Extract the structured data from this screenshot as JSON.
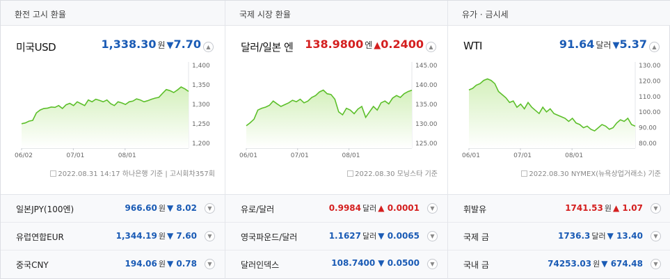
{
  "colors": {
    "up": "#d41f1f",
    "down": "#1a5bb5",
    "line": "#5cbf2a",
    "fill": "#d4f0bc"
  },
  "panels": [
    {
      "header": "환전 고시 환율",
      "name": "미국USD",
      "value": "1,338.30",
      "unit": "원",
      "dir": "down",
      "arrow": "▼",
      "change": "7.70",
      "toggle_icon": "chevron-up-icon",
      "source": "2022.08.31 14:17 하나은행 기준 | 고시회차357회",
      "chart_data": {
        "type": "area",
        "x_ticks": [
          "06/02",
          "07/01",
          "08/01"
        ],
        "y_ticks": [
          "1,400",
          "1,350",
          "1,300",
          "1,250",
          "1,200"
        ],
        "ylim": [
          1185,
          1410
        ],
        "values": [
          1251,
          1253,
          1258,
          1260,
          1280,
          1288,
          1292,
          1293,
          1296,
          1295,
          1300,
          1292,
          1302,
          1306,
          1300,
          1310,
          1305,
          1300,
          1315,
          1310,
          1317,
          1314,
          1310,
          1315,
          1305,
          1300,
          1310,
          1307,
          1303,
          1310,
          1312,
          1318,
          1315,
          1310,
          1313,
          1317,
          1320,
          1322,
          1333,
          1343,
          1340,
          1335,
          1342,
          1350,
          1345,
          1338
        ]
      }
    },
    {
      "header": "국제 시장 환율",
      "name": "달러/일본 엔",
      "value": "138.9800",
      "unit": "엔",
      "dir": "up",
      "arrow": "▲",
      "change": "0.2400",
      "toggle_icon": "chevron-up-icon",
      "source": "2022.08.30 모닝스타 기준",
      "chart_data": {
        "type": "area",
        "x_ticks": [
          "06/01",
          "07/01",
          "08/01"
        ],
        "y_ticks": [
          "145.00",
          "140.00",
          "135.00",
          "130.00",
          "125.00"
        ],
        "ylim": [
          123,
          146
        ],
        "values": [
          129.2,
          130.0,
          131.0,
          133.5,
          134.0,
          134.3,
          134.8,
          136.0,
          135.2,
          134.5,
          135.0,
          135.5,
          136.2,
          135.8,
          136.5,
          135.5,
          136.0,
          137.0,
          137.5,
          138.5,
          139.0,
          138.0,
          137.8,
          136.5,
          133.0,
          132.2,
          134.0,
          133.5,
          132.5,
          133.8,
          134.5,
          131.5,
          133.0,
          134.5,
          133.5,
          135.5,
          136.0,
          135.2,
          136.8,
          137.5,
          137.0,
          138.0,
          138.6,
          138.98
        ]
      }
    },
    {
      "header": "유가 · 금시세",
      "name": "WTI",
      "value": "91.64",
      "unit": "달러",
      "dir": "down",
      "arrow": "▼",
      "change": "5.37",
      "toggle_icon": "chevron-up-icon",
      "source": "2022.08.30 NYMEX(뉴욕상업거래소) 기준",
      "chart_data": {
        "type": "area",
        "x_ticks": [
          "06/01",
          "07/01",
          "08/01"
        ],
        "y_ticks": [
          "130.00",
          "120.00",
          "110.00",
          "100.00",
          "90.00",
          "80.00"
        ],
        "ylim": [
          78,
          131
        ],
        "values": [
          115,
          116,
          118,
          119,
          121,
          122,
          121,
          119,
          114,
          112,
          110,
          107,
          108,
          104,
          106,
          103,
          107,
          104,
          102,
          100,
          104,
          101,
          103,
          100,
          99,
          98,
          97,
          95,
          97,
          94,
          93,
          91,
          92,
          90,
          89,
          91,
          93,
          92,
          90,
          91,
          94,
          96,
          95,
          97,
          93,
          92
        ]
      }
    }
  ],
  "rows": [
    [
      {
        "label": "일본JPY(100엔)",
        "value": "966.60",
        "unit": "원",
        "dir": "down",
        "arrow": "▼",
        "change": "8.02",
        "toggle_icon": "chevron-down-icon"
      },
      {
        "label": "유로/달러",
        "value": "0.9984",
        "unit": "달러",
        "dir": "up",
        "arrow": "▲",
        "change": "0.0001",
        "toggle_icon": "chevron-down-icon"
      },
      {
        "label": "휘발유",
        "value": "1741.53",
        "unit": "원",
        "dir": "up",
        "arrow": "▲",
        "change": "1.07",
        "toggle_icon": "chevron-down-icon"
      }
    ],
    [
      {
        "label": "유럽연합EUR",
        "value": "1,344.19",
        "unit": "원",
        "dir": "down",
        "arrow": "▼",
        "change": "7.60",
        "toggle_icon": "chevron-down-icon"
      },
      {
        "label": "영국파운드/달러",
        "value": "1.1627",
        "unit": "달러",
        "dir": "down",
        "arrow": "▼",
        "change": "0.0065",
        "toggle_icon": "chevron-down-icon"
      },
      {
        "label": "국제 금",
        "value": "1736.3",
        "unit": "달러",
        "dir": "down",
        "arrow": "▼",
        "change": "13.40",
        "toggle_icon": "chevron-down-icon"
      }
    ],
    [
      {
        "label": "중국CNY",
        "value": "194.06",
        "unit": "원",
        "dir": "down",
        "arrow": "▼",
        "change": "0.78",
        "toggle_icon": "chevron-down-icon"
      },
      {
        "label": "달러인덱스",
        "value": "108.7400",
        "unit": "",
        "dir": "down",
        "arrow": "▼",
        "change": "0.0500",
        "toggle_icon": "chevron-down-icon"
      },
      {
        "label": "국내 금",
        "value": "74253.03",
        "unit": "원",
        "dir": "down",
        "arrow": "▼",
        "change": "674.48",
        "toggle_icon": "chevron-down-icon"
      }
    ]
  ]
}
